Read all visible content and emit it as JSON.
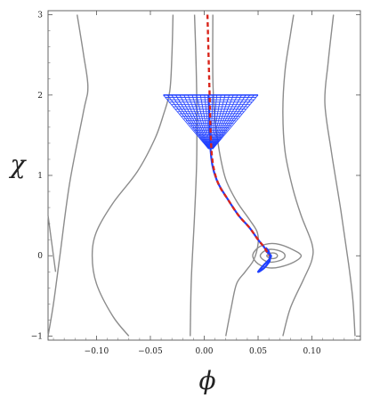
{
  "chart_data": {
    "type": "line",
    "xlabel": "ϕ",
    "ylabel": "χ",
    "xlim": [
      -0.145,
      0.145
    ],
    "ylim": [
      -1.05,
      3.05
    ],
    "x_ticks": [
      -0.1,
      -0.05,
      0.0,
      0.05,
      0.1
    ],
    "x_tick_labels": [
      "−0.10",
      "−0.05",
      "0.00",
      "0.05",
      "0.10"
    ],
    "y_ticks": [
      -1,
      0,
      1,
      2,
      3
    ],
    "y_tick_labels": [
      "−1",
      "0",
      "1",
      "2",
      "3"
    ],
    "grid": false,
    "colors": {
      "contour": "#8c8c8c",
      "trajectory": "#1f3fff",
      "dashed": "#d9261c"
    },
    "contours": [
      {
        "name": "outer-left-a",
        "points": [
          [
            -0.145,
            -1.0
          ],
          [
            -0.14,
            -0.6
          ],
          [
            -0.134,
            0.0
          ],
          [
            -0.125,
            0.9
          ],
          [
            -0.112,
            1.8
          ],
          [
            -0.108,
            2.1
          ],
          [
            -0.112,
            2.5
          ],
          [
            -0.118,
            3.0
          ]
        ]
      },
      {
        "name": "outer-left-b",
        "points": [
          [
            -0.138,
            -0.2
          ],
          [
            -0.145,
            0.5
          ]
        ]
      },
      {
        "name": "left-U",
        "points": [
          [
            -0.07,
            -1.0
          ],
          [
            -0.085,
            -0.75
          ],
          [
            -0.1,
            -0.35
          ],
          [
            -0.104,
            0.0
          ],
          [
            -0.1,
            0.3
          ],
          [
            -0.085,
            0.65
          ],
          [
            -0.062,
            1.05
          ],
          [
            -0.046,
            1.45
          ],
          [
            -0.038,
            1.75
          ],
          [
            -0.032,
            2.05
          ],
          [
            -0.03,
            2.5
          ],
          [
            -0.029,
            3.0
          ]
        ]
      },
      {
        "name": "inner-left",
        "points": [
          [
            -0.013,
            -1.0
          ],
          [
            -0.012,
            -0.3
          ],
          [
            -0.009,
            0.5
          ],
          [
            -0.007,
            1.2
          ],
          [
            -0.007,
            2.0
          ],
          [
            -0.008,
            2.6
          ],
          [
            -0.009,
            3.0
          ]
        ]
      },
      {
        "name": "central-right",
        "points": [
          [
            0.02,
            -1.0
          ],
          [
            0.025,
            -0.65
          ],
          [
            0.03,
            -0.35
          ],
          [
            0.038,
            -0.2
          ],
          [
            0.046,
            -0.05
          ],
          [
            0.05,
            0.15
          ],
          [
            0.049,
            0.3
          ],
          [
            0.042,
            0.45
          ],
          [
            0.03,
            0.68
          ],
          [
            0.02,
            0.95
          ],
          [
            0.014,
            1.3
          ],
          [
            0.01,
            1.7
          ],
          [
            0.008,
            2.2
          ],
          [
            0.008,
            3.0
          ]
        ]
      },
      {
        "name": "right-U",
        "points": [
          [
            0.073,
            -1.0
          ],
          [
            0.08,
            -0.65
          ],
          [
            0.092,
            -0.3
          ],
          [
            0.1,
            -0.05
          ],
          [
            0.1,
            0.15
          ],
          [
            0.09,
            0.5
          ],
          [
            0.082,
            0.85
          ],
          [
            0.075,
            1.3
          ],
          [
            0.073,
            1.8
          ],
          [
            0.075,
            2.3
          ],
          [
            0.08,
            2.75
          ],
          [
            0.083,
            3.0
          ]
        ]
      },
      {
        "name": "outer-right",
        "points": [
          [
            0.14,
            -1.0
          ],
          [
            0.138,
            -0.55
          ],
          [
            0.134,
            -0.1
          ],
          [
            0.127,
            0.55
          ],
          [
            0.118,
            1.3
          ],
          [
            0.112,
            1.9
          ],
          [
            0.115,
            2.4
          ],
          [
            0.12,
            3.0
          ]
        ]
      },
      {
        "name": "loop-1",
        "closed": true,
        "points": [
          [
            0.045,
            0.0
          ],
          [
            0.05,
            0.1
          ],
          [
            0.06,
            0.15
          ],
          [
            0.07,
            0.14
          ],
          [
            0.083,
            0.07
          ],
          [
            0.09,
            0.0
          ],
          [
            0.083,
            -0.08
          ],
          [
            0.07,
            -0.14
          ],
          [
            0.06,
            -0.15
          ],
          [
            0.05,
            -0.1
          ]
        ]
      },
      {
        "name": "loop-2",
        "closed": true,
        "points": [
          [
            0.052,
            0.0
          ],
          [
            0.056,
            0.06
          ],
          [
            0.063,
            0.08
          ],
          [
            0.072,
            0.05
          ],
          [
            0.075,
            0.0
          ],
          [
            0.072,
            -0.05
          ],
          [
            0.063,
            -0.08
          ],
          [
            0.056,
            -0.06
          ]
        ]
      },
      {
        "name": "loop-3",
        "closed": true,
        "points": [
          [
            0.058,
            0.0
          ],
          [
            0.061,
            0.03
          ],
          [
            0.066,
            0.03
          ],
          [
            0.068,
            0.0
          ],
          [
            0.066,
            -0.03
          ],
          [
            0.061,
            -0.03
          ]
        ]
      }
    ],
    "field_lines": {
      "y_top": 2.0,
      "y_bottom": 1.33,
      "count": 24,
      "x_left_top": -0.038,
      "x_right_top": 0.05,
      "x_center_bottom": 0.006
    },
    "trajectory": [
      [
        0.004,
        2.0
      ],
      [
        0.005,
        1.6
      ],
      [
        0.006,
        1.3
      ],
      [
        0.008,
        1.1
      ],
      [
        0.013,
        0.9
      ],
      [
        0.022,
        0.7
      ],
      [
        0.032,
        0.5
      ],
      [
        0.042,
        0.35
      ],
      [
        0.05,
        0.2
      ],
      [
        0.056,
        0.1
      ],
      [
        0.058,
        0.05
      ],
      [
        0.062,
        0.0
      ],
      [
        0.06,
        -0.05
      ],
      [
        0.055,
        -0.12
      ],
      [
        0.05,
        -0.2
      ],
      [
        0.055,
        -0.16
      ],
      [
        0.059,
        -0.1
      ],
      [
        0.061,
        -0.05
      ],
      [
        0.06,
        0.05
      ],
      [
        0.057,
        0.1
      ]
    ],
    "dashed_path": [
      [
        0.003,
        3.0
      ],
      [
        0.004,
        2.5
      ],
      [
        0.005,
        2.0
      ],
      [
        0.006,
        1.5
      ],
      [
        0.008,
        1.15
      ],
      [
        0.013,
        0.9
      ],
      [
        0.022,
        0.7
      ],
      [
        0.032,
        0.5
      ],
      [
        0.042,
        0.35
      ],
      [
        0.05,
        0.2
      ],
      [
        0.056,
        0.1
      ],
      [
        0.06,
        0.0
      ]
    ]
  }
}
